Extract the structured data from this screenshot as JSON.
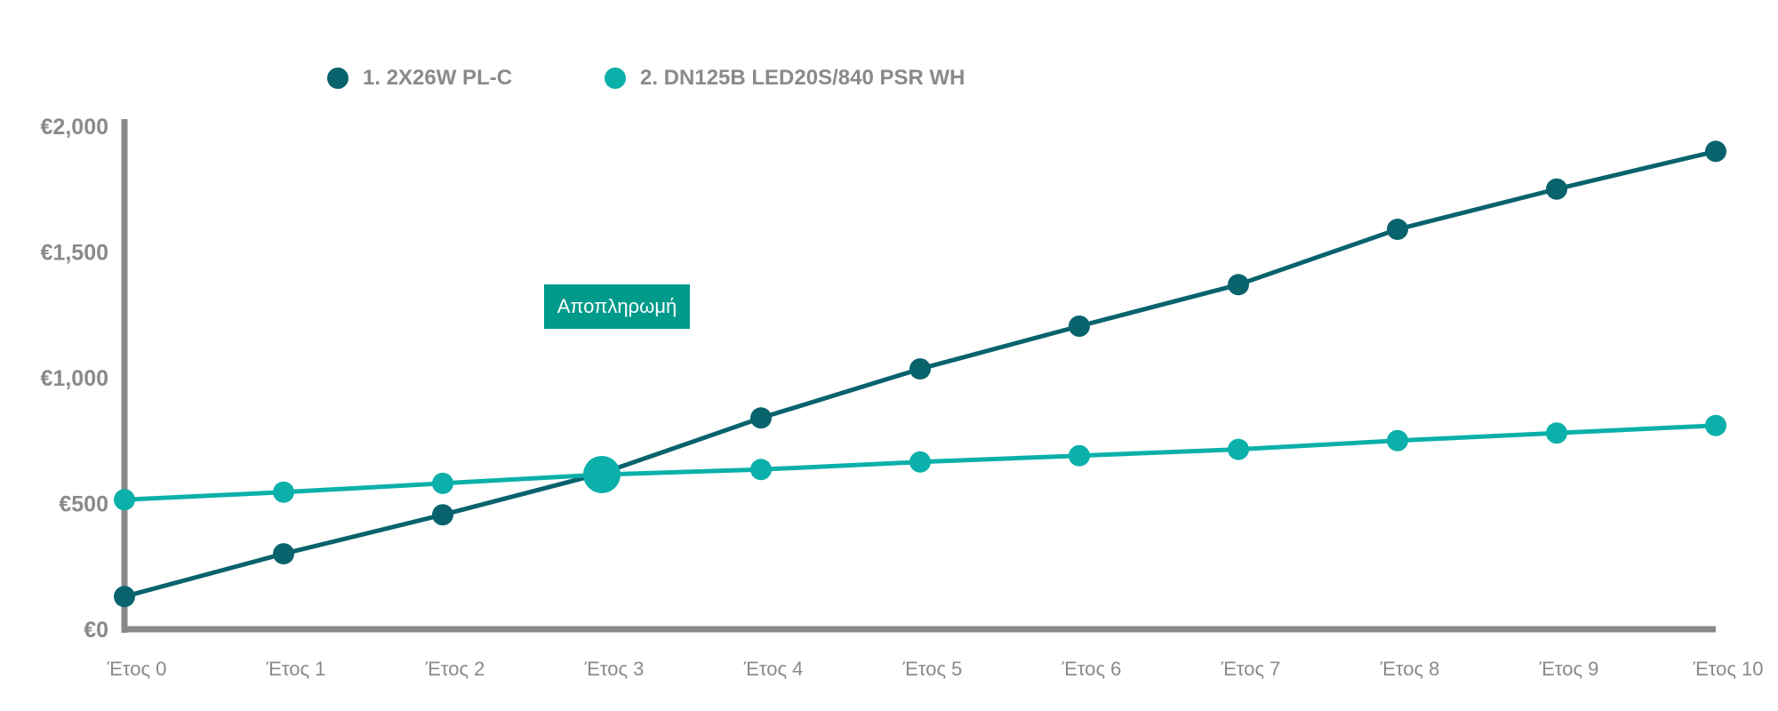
{
  "chart_data": {
    "type": "line",
    "categories": [
      "Έτος 0",
      "Έτος 1",
      "Έτος 2",
      "Έτος 3",
      "Έτος 4",
      "Έτος 5",
      "Έτος 6",
      "Έτος 7",
      "Έτος 8",
      "Έτος 9",
      "Έτος 10"
    ],
    "y_ticks": [
      "€0",
      "€500",
      "€1,000",
      "€1,500",
      "€2,000"
    ],
    "ylim": [
      0,
      2000
    ],
    "series": [
      {
        "name": "1. 2X26W PL-C",
        "color": "#08636d",
        "values": [
          130,
          300,
          455,
          620,
          840,
          1035,
          1205,
          1370,
          1590,
          1750,
          1900
        ]
      },
      {
        "name": "2. DN125B LED20S/840 PSR WH",
        "color": "#0bb0aa",
        "values": [
          515,
          545,
          580,
          615,
          635,
          665,
          690,
          715,
          750,
          780,
          810
        ]
      }
    ],
    "annotation": {
      "label": "Αποπληρωμή",
      "x_index": 3,
      "y": 615
    },
    "grid": false,
    "legend_position": "top-left"
  }
}
